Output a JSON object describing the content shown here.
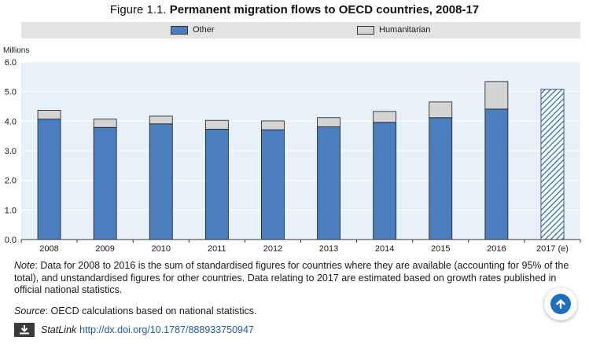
{
  "figure": {
    "prefix": "Figure 1.1.",
    "title": "Permanent migration flows to OECD countries, 2008-17"
  },
  "colors": {
    "other": "#4a7ebf",
    "humanitarian": "#d4d4d4",
    "estimate": "#4a7ebf",
    "legend_bg": "#e3e3e3",
    "plot_bg": "#e8f0f8"
  },
  "chart_data": {
    "type": "bar",
    "stacked": true,
    "title": "Permanent migration flows to OECD countries, 2008-17",
    "ylabel": "Millions",
    "xlabel": "",
    "ylim": [
      0,
      6
    ],
    "yticks": [
      "0.0",
      "1.0",
      "2.0",
      "3.0",
      "4.0",
      "5.0",
      "6.0"
    ],
    "legend_position": "top",
    "categories": [
      "2008",
      "2009",
      "2010",
      "2011",
      "2012",
      "2013",
      "2014",
      "2015",
      "2016",
      "2017 (e)"
    ],
    "series": [
      {
        "name": "Other",
        "values": [
          4.07,
          3.79,
          3.91,
          3.73,
          3.71,
          3.81,
          3.96,
          4.12,
          4.41,
          null
        ]
      },
      {
        "name": "Humanitarian",
        "values": [
          0.3,
          0.28,
          0.26,
          0.3,
          0.3,
          0.31,
          0.37,
          0.53,
          0.93,
          null
        ]
      }
    ],
    "estimate_total": {
      "category": "2017 (e)",
      "value": 5.08
    }
  },
  "notes": {
    "note_label": "Note",
    "note_text": ": Data for 2008 to 2016 is the sum of standardised figures for countries where they are available (accounting for 95% of the total), and unstandardised figures for other countries. Data relating to 2017 are estimated based on growth rates published in official national statistics.",
    "source_label": "Source",
    "source_text": ": OECD calculations based on national statistics."
  },
  "statlink": {
    "label": "StatLink",
    "url": "http://dx.doi.org/10.1787/888933750947"
  }
}
